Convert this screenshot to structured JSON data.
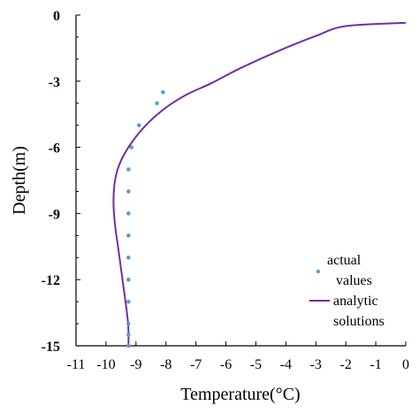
{
  "chart_data": {
    "type": "scatter+line",
    "xlabel": "Temperature(°C)",
    "ylabel": "Depth(m)",
    "xlim": [
      -11,
      0
    ],
    "ylim": [
      -15,
      0
    ],
    "x_ticks": [
      "-11",
      "-10",
      "-9",
      "-8",
      "-7",
      "-6",
      "-5",
      "-4",
      "-3",
      "-2",
      "-1",
      "0"
    ],
    "y_ticks": [
      "0",
      "-3",
      "-6",
      "-9",
      "-12",
      "-15"
    ],
    "grid": false,
    "legend_position": "bottom-right",
    "legend": {
      "scatter_label_line1": "actual",
      "scatter_label_line2": "values",
      "line_label_line1": "analytic",
      "line_label_line2": "solutions"
    },
    "colors": {
      "points": "#5B9BD5",
      "curve": "#7030A0"
    },
    "series": [
      {
        "name": "actual values",
        "kind": "scatter",
        "points": [
          {
            "x": -8.1,
            "y": -3.5
          },
          {
            "x": -8.3,
            "y": -4.0
          },
          {
            "x": -8.9,
            "y": -5.0
          },
          {
            "x": -9.15,
            "y": -6.0
          },
          {
            "x": -9.25,
            "y": -7.0
          },
          {
            "x": -9.25,
            "y": -8.0
          },
          {
            "x": -9.25,
            "y": -9.0
          },
          {
            "x": -9.25,
            "y": -10.0
          },
          {
            "x": -9.25,
            "y": -11.0
          },
          {
            "x": -9.25,
            "y": -12.0
          },
          {
            "x": -9.25,
            "y": -13.0
          },
          {
            "x": -9.25,
            "y": -14.0
          },
          {
            "x": -9.25,
            "y": -14.5
          },
          {
            "x": -9.25,
            "y": -15.0
          }
        ]
      },
      {
        "name": "analytic solutions",
        "kind": "line",
        "points": [
          {
            "x": 0.0,
            "y": -0.35
          },
          {
            "x": -2.0,
            "y": -0.5
          },
          {
            "x": -3.0,
            "y": -0.95
          },
          {
            "x": -4.2,
            "y": -1.6
          },
          {
            "x": -5.5,
            "y": -2.4
          },
          {
            "x": -6.5,
            "y": -3.1
          },
          {
            "x": -7.3,
            "y": -3.6
          },
          {
            "x": -8.0,
            "y": -4.2
          },
          {
            "x": -8.6,
            "y": -4.9
          },
          {
            "x": -9.1,
            "y": -5.7
          },
          {
            "x": -9.5,
            "y": -6.6
          },
          {
            "x": -9.7,
            "y": -7.5
          },
          {
            "x": -9.75,
            "y": -8.5
          },
          {
            "x": -9.7,
            "y": -9.5
          },
          {
            "x": -9.6,
            "y": -10.5
          },
          {
            "x": -9.5,
            "y": -11.5
          },
          {
            "x": -9.4,
            "y": -12.5
          },
          {
            "x": -9.3,
            "y": -13.5
          },
          {
            "x": -9.25,
            "y": -14.3
          },
          {
            "x": -9.25,
            "y": -15.0
          }
        ]
      }
    ]
  }
}
